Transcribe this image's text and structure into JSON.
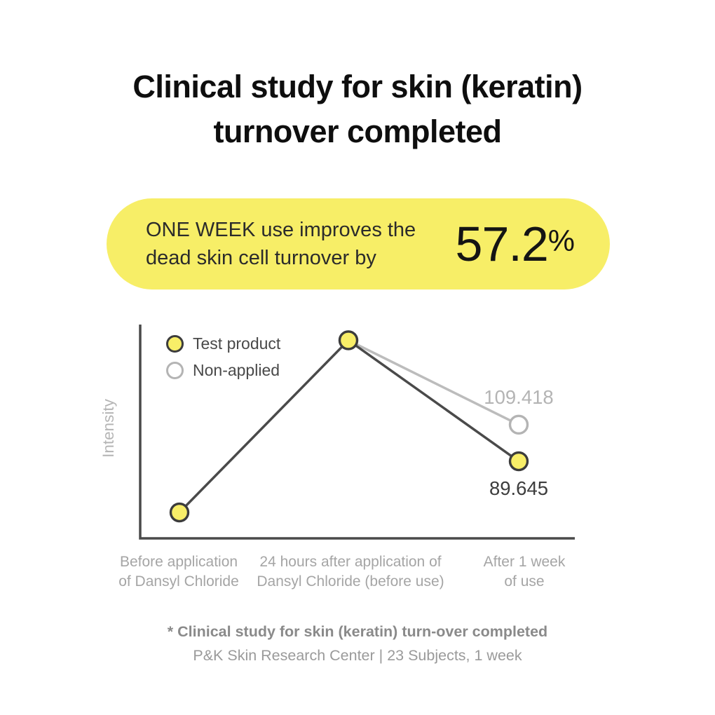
{
  "title": {
    "line1": "Clinical study for skin (keratin)",
    "line2": "turnover completed"
  },
  "highlight": {
    "text_line1": "ONE WEEK use improves the",
    "text_line2": "dead skin cell turnover by",
    "value": "57.2",
    "unit": "%",
    "bg_color": "#f7ee67"
  },
  "chart_data": {
    "type": "line",
    "ylabel": "Intensity",
    "categories": [
      "Before application\nof Dansyl Chloride",
      "24 hours after application of\nDansyl Chloride (before use)",
      "After 1 week\nof use"
    ],
    "ylim": [
      48,
      163.5
    ],
    "grid": false,
    "legend_position": "top-left",
    "axis_color": "#4a4a4a",
    "series": [
      {
        "name": "Test product",
        "line_color": "#4a4a4a",
        "marker_fill": "#f8ee68",
        "marker_stroke": "#3c3c3c",
        "values": [
          62,
          155,
          89.645
        ],
        "point_label": {
          "index": 2,
          "text": "89.645",
          "color": "#3d3d3d",
          "position": "below"
        }
      },
      {
        "name": "Non-applied",
        "line_color": "#bcbcbc",
        "marker_fill": "#ffffff",
        "marker_stroke": "#b4b4b4",
        "values": [
          null,
          155,
          109.418
        ],
        "point_label": {
          "index": 2,
          "text": "109.418",
          "color": "#b4b4b4",
          "position": "above"
        }
      }
    ]
  },
  "footnote": {
    "line1": "* Clinical study for skin (keratin) turn-over completed",
    "line2": "P&K Skin Research Center | 23 Subjects, 1 week"
  }
}
